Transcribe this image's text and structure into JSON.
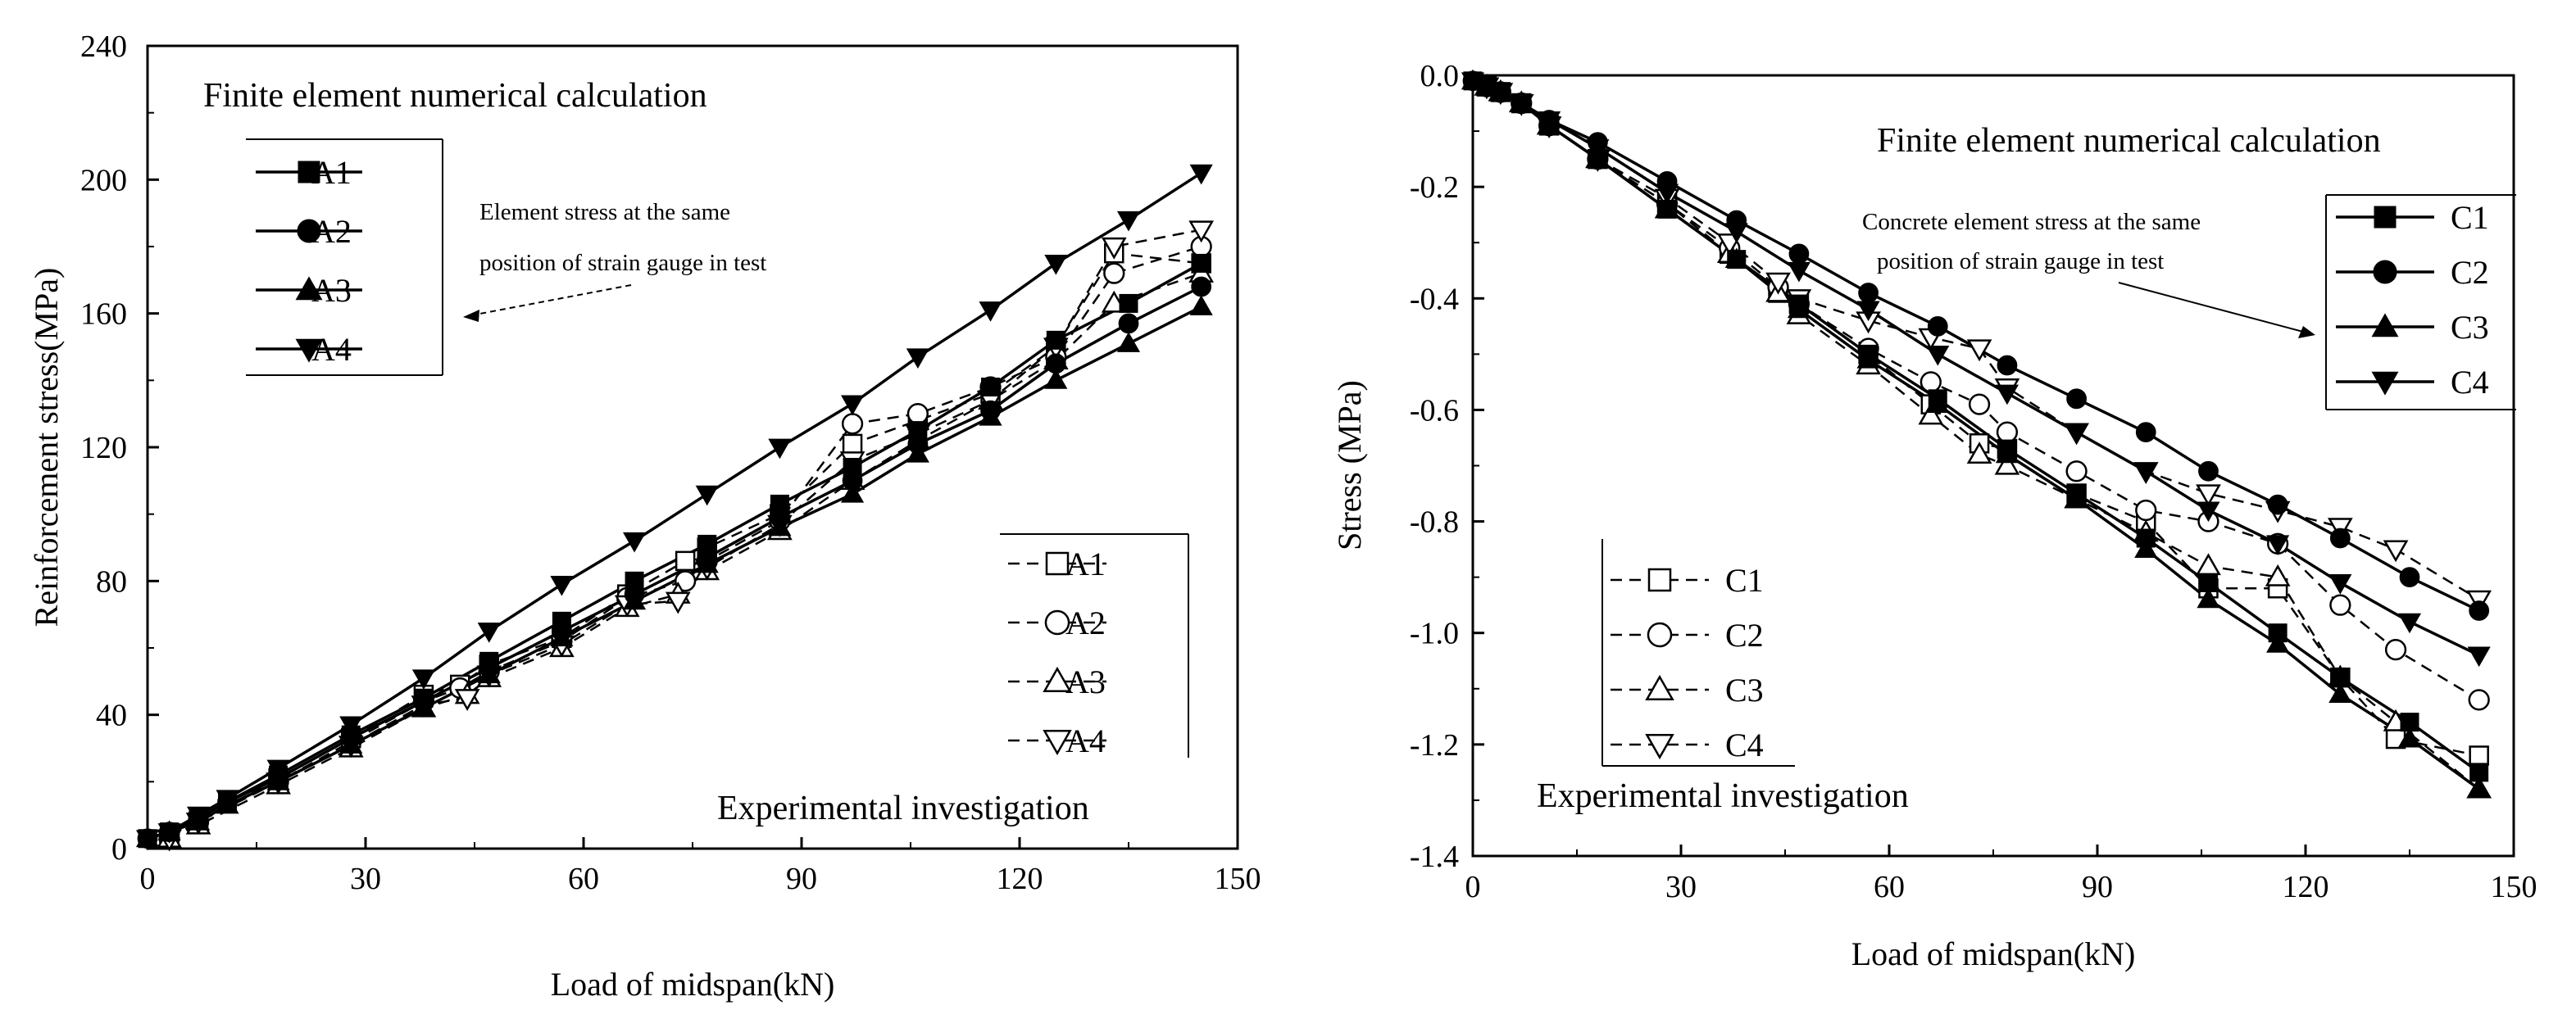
{
  "chart_data": [
    {
      "type": "line",
      "id": "left",
      "xlabel": "Load of midspan(kN)",
      "ylabel": "Reinforcement stress(MPa)",
      "xlim": [
        0,
        150
      ],
      "ylim": [
        0,
        240
      ],
      "xticks": [
        "0",
        "30",
        "60",
        "90",
        "120",
        "150"
      ],
      "yticks": [
        "0",
        "40",
        "80",
        "120",
        "160",
        "200",
        "240"
      ],
      "annotations": {
        "fe_title": "Finite element numerical calculation",
        "note_line1": "Element stress at the same",
        "note_line2": "position of strain gauge in test",
        "exp_title": "Experimental investigation"
      },
      "fe_legend": [
        "A1",
        "A2",
        "A3",
        "A4"
      ],
      "exp_legend": [
        "A1",
        "A2",
        "A3",
        "A4"
      ],
      "fe_series": [
        {
          "name": "A1",
          "marker": "square",
          "x": [
            0,
            3,
            7,
            11,
            18,
            28,
            38,
            47,
            57,
            67,
            77,
            87,
            97,
            106,
            116,
            125,
            135,
            145
          ],
          "y": [
            3,
            5,
            9,
            14,
            22,
            34,
            45,
            56,
            68,
            80,
            91,
            103,
            114,
            125,
            138,
            152,
            163,
            175
          ]
        },
        {
          "name": "A2",
          "marker": "circle",
          "x": [
            0,
            3,
            7,
            11,
            18,
            28,
            38,
            47,
            57,
            67,
            77,
            87,
            97,
            106,
            116,
            125,
            135,
            145
          ],
          "y": [
            3,
            5,
            9,
            14,
            21,
            33,
            44,
            54,
            65,
            76,
            87,
            99,
            110,
            121,
            131,
            145,
            157,
            168
          ]
        },
        {
          "name": "A3",
          "marker": "triangle-up",
          "x": [
            0,
            3,
            7,
            11,
            18,
            28,
            38,
            47,
            57,
            67,
            77,
            87,
            97,
            106,
            116,
            125,
            135,
            145
          ],
          "y": [
            3,
            5,
            8,
            13,
            20,
            31,
            42,
            52,
            63,
            74,
            85,
            96,
            106,
            118,
            129,
            140,
            151,
            162
          ]
        },
        {
          "name": "A4",
          "marker": "triangle-down",
          "x": [
            0,
            3,
            7,
            11,
            18,
            28,
            38,
            47,
            57,
            67,
            77,
            87,
            97,
            106,
            116,
            125,
            135,
            145
          ],
          "y": [
            3,
            5,
            10,
            15,
            24,
            37,
            51,
            65,
            79,
            92,
            106,
            120,
            133,
            147,
            161,
            175,
            188,
            202
          ]
        }
      ],
      "exp_series": [
        {
          "name": "A1",
          "marker": "square-open",
          "x": [
            3,
            7,
            18,
            28,
            38,
            43,
            47,
            57,
            66,
            74,
            77,
            87,
            97,
            106,
            116,
            125,
            133,
            145
          ],
          "y": [
            3,
            8,
            21,
            33,
            46,
            49,
            55,
            63,
            76,
            86,
            90,
            100,
            121,
            128,
            136,
            150,
            178,
            175
          ]
        },
        {
          "name": "A2",
          "marker": "circle-open",
          "x": [
            3,
            7,
            18,
            28,
            38,
            43,
            47,
            57,
            66,
            74,
            77,
            87,
            97,
            106,
            116,
            125,
            133,
            145
          ],
          "y": [
            3,
            8,
            20,
            32,
            44,
            48,
            53,
            62,
            75,
            80,
            86,
            98,
            127,
            130,
            138,
            147,
            172,
            180
          ]
        },
        {
          "name": "A3",
          "marker": "triangle-up-open",
          "x": [
            3,
            7,
            18,
            28,
            38,
            44,
            47,
            57,
            66,
            73,
            77,
            87,
            97,
            106,
            116,
            125,
            133,
            145
          ],
          "y": [
            3,
            7,
            19,
            30,
            42,
            46,
            51,
            60,
            72,
            76,
            83,
            95,
            110,
            122,
            134,
            146,
            163,
            172
          ]
        },
        {
          "name": "A4",
          "marker": "triangle-down-open",
          "x": [
            3,
            7,
            18,
            28,
            38,
            44,
            47,
            57,
            66,
            73,
            77,
            87,
            97,
            106,
            116,
            125,
            133,
            145
          ],
          "y": [
            3,
            8,
            20,
            31,
            43,
            45,
            52,
            61,
            73,
            74,
            84,
            97,
            116,
            124,
            134,
            150,
            180,
            185
          ]
        }
      ]
    },
    {
      "type": "line",
      "id": "right",
      "xlabel": "Load of midspan(kN)",
      "ylabel": "Stress (MPa)",
      "xlim": [
        0,
        150
      ],
      "ylim": [
        -1.4,
        0
      ],
      "xticks": [
        "0",
        "30",
        "60",
        "90",
        "120",
        "150"
      ],
      "yticks": [
        "0.0",
        "-0.2",
        "-0.4",
        "-0.6",
        "-0.8",
        "-1.0",
        "-1.2",
        "-1.4"
      ],
      "annotations": {
        "fe_title": "Finite element numerical calculation",
        "note_line1": "Concrete element stress at the same",
        "note_line2": "position of strain gauge in test",
        "exp_title": "Experimental investigation"
      },
      "fe_legend": [
        "C1",
        "C2",
        "C3",
        "C4"
      ],
      "exp_legend": [
        "C1",
        "C2",
        "C3",
        "C4"
      ],
      "fe_series": [
        {
          "name": "C1",
          "marker": "square",
          "x": [
            0,
            2,
            4,
            7,
            11,
            18,
            28,
            38,
            47,
            57,
            67,
            77,
            87,
            97,
            106,
            116,
            125,
            135,
            145
          ],
          "y": [
            -0.01,
            -0.02,
            -0.03,
            -0.05,
            -0.09,
            -0.15,
            -0.24,
            -0.33,
            -0.41,
            -0.5,
            -0.58,
            -0.67,
            -0.75,
            -0.83,
            -0.91,
            -1.0,
            -1.08,
            -1.16,
            -1.25
          ]
        },
        {
          "name": "C2",
          "marker": "circle",
          "x": [
            0,
            2,
            4,
            7,
            11,
            18,
            28,
            38,
            47,
            57,
            67,
            77,
            87,
            97,
            106,
            116,
            125,
            135,
            145
          ],
          "y": [
            -0.01,
            -0.02,
            -0.03,
            -0.05,
            -0.08,
            -0.12,
            -0.19,
            -0.26,
            -0.32,
            -0.39,
            -0.45,
            -0.52,
            -0.58,
            -0.64,
            -0.71,
            -0.77,
            -0.83,
            -0.9,
            -0.96
          ]
        },
        {
          "name": "C3",
          "marker": "triangle-up",
          "x": [
            0,
            2,
            4,
            7,
            11,
            18,
            28,
            38,
            47,
            57,
            67,
            77,
            87,
            97,
            106,
            116,
            125,
            135,
            145
          ],
          "y": [
            -0.01,
            -0.02,
            -0.03,
            -0.05,
            -0.09,
            -0.15,
            -0.24,
            -0.33,
            -0.42,
            -0.51,
            -0.59,
            -0.68,
            -0.76,
            -0.85,
            -0.94,
            -1.02,
            -1.11,
            -1.19,
            -1.28
          ]
        },
        {
          "name": "C4",
          "marker": "triangle-down",
          "x": [
            0,
            2,
            4,
            7,
            11,
            18,
            28,
            38,
            47,
            57,
            67,
            77,
            87,
            97,
            106,
            116,
            125,
            135,
            145
          ],
          "y": [
            -0.01,
            -0.02,
            -0.03,
            -0.05,
            -0.08,
            -0.13,
            -0.21,
            -0.28,
            -0.35,
            -0.42,
            -0.5,
            -0.57,
            -0.64,
            -0.71,
            -0.78,
            -0.84,
            -0.91,
            -0.98,
            -1.04
          ]
        }
      ],
      "exp_series": [
        {
          "name": "C1",
          "marker": "square-open",
          "x": [
            2,
            4,
            7,
            11,
            18,
            28,
            37,
            44,
            47,
            57,
            66,
            73,
            77,
            87,
            97,
            106,
            116,
            125,
            133,
            145
          ],
          "y": [
            -0.02,
            -0.03,
            -0.05,
            -0.09,
            -0.15,
            -0.23,
            -0.32,
            -0.39,
            -0.41,
            -0.5,
            -0.59,
            -0.66,
            -0.67,
            -0.75,
            -0.8,
            -0.92,
            -0.92,
            -1.08,
            -1.19,
            -1.22
          ]
        },
        {
          "name": "C2",
          "marker": "circle-open",
          "x": [
            2,
            4,
            7,
            11,
            18,
            28,
            37,
            44,
            47,
            57,
            66,
            73,
            77,
            87,
            97,
            106,
            116,
            125,
            133,
            145
          ],
          "y": [
            -0.02,
            -0.03,
            -0.05,
            -0.09,
            -0.15,
            -0.23,
            -0.31,
            -0.38,
            -0.41,
            -0.49,
            -0.55,
            -0.59,
            -0.64,
            -0.71,
            -0.78,
            -0.8,
            -0.84,
            -0.95,
            -1.03,
            -1.12
          ]
        },
        {
          "name": "C3",
          "marker": "triangle-up-open",
          "x": [
            2,
            4,
            7,
            11,
            18,
            28,
            37,
            44,
            47,
            57,
            66,
            73,
            77,
            87,
            97,
            106,
            116,
            125,
            133,
            145
          ],
          "y": [
            -0.02,
            -0.03,
            -0.05,
            -0.09,
            -0.15,
            -0.24,
            -0.32,
            -0.39,
            -0.43,
            -0.52,
            -0.61,
            -0.68,
            -0.7,
            -0.76,
            -0.82,
            -0.88,
            -0.9,
            -1.08,
            -1.16,
            -1.28
          ]
        },
        {
          "name": "C4",
          "marker": "triangle-down-open",
          "x": [
            2,
            4,
            7,
            11,
            18,
            28,
            37,
            44,
            47,
            57,
            66,
            73,
            77,
            87,
            97,
            106,
            116,
            125,
            133,
            145
          ],
          "y": [
            -0.02,
            -0.03,
            -0.05,
            -0.09,
            -0.15,
            -0.22,
            -0.3,
            -0.37,
            -0.4,
            -0.44,
            -0.47,
            -0.49,
            -0.56,
            -0.64,
            -0.71,
            -0.75,
            -0.78,
            -0.81,
            -0.85,
            -0.94
          ]
        }
      ]
    }
  ]
}
